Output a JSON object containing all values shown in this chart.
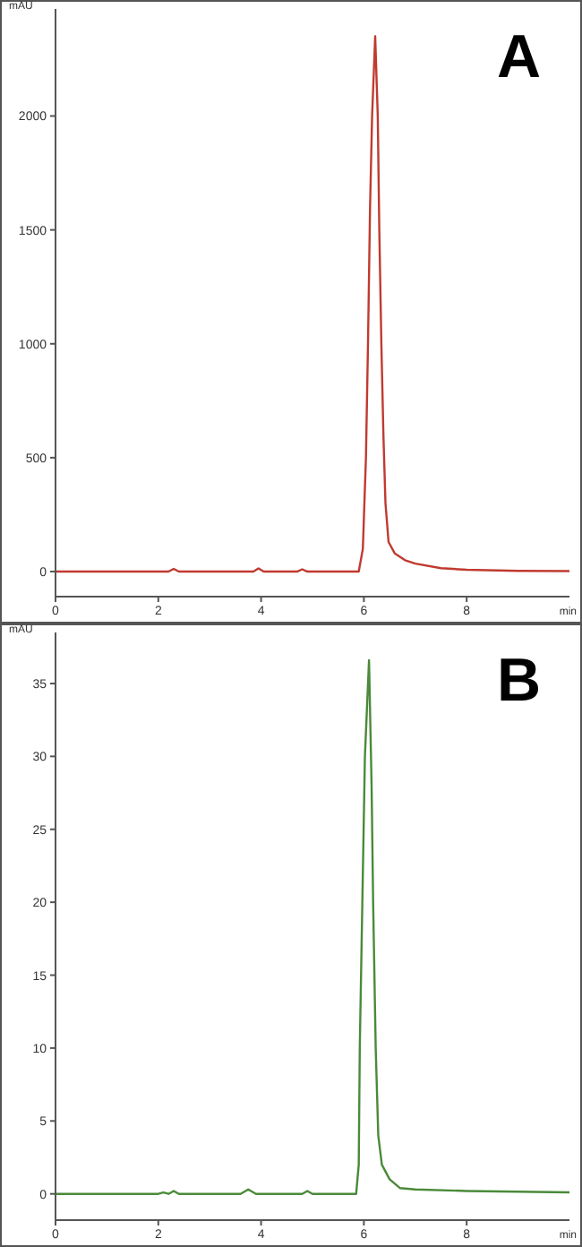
{
  "chart_data": [
    {
      "type": "line",
      "title": "A",
      "xlabel": "min",
      "ylabel": "mAU",
      "xlim": [
        0,
        10
      ],
      "xticks": [
        0,
        2,
        4,
        6,
        8
      ],
      "ylim": [
        -110,
        2470
      ],
      "yticks": [
        0,
        500,
        1000,
        1500,
        2000
      ],
      "series": [
        {
          "color": "#c03a30",
          "x": [
            0,
            2.2,
            2.3,
            2.4,
            3.85,
            3.95,
            4.05,
            4.7,
            4.8,
            4.9,
            5.9,
            5.98,
            6.04,
            6.08,
            6.12,
            6.16,
            6.22,
            6.27,
            6.3,
            6.34,
            6.38,
            6.42,
            6.48,
            6.6,
            6.8,
            7.0,
            7.5,
            8,
            9,
            10
          ],
          "values": [
            0,
            0,
            12,
            0,
            0,
            14,
            0,
            0,
            10,
            0,
            0,
            100,
            500,
            1000,
            1600,
            2000,
            2350,
            2000,
            1500,
            1000,
            600,
            300,
            130,
            80,
            50,
            35,
            15,
            8,
            3,
            2
          ]
        }
      ]
    },
    {
      "type": "line",
      "title": "B",
      "xlabel": "min",
      "ylabel": "mAU",
      "xlim": [
        0,
        10
      ],
      "xticks": [
        0,
        2,
        4,
        6,
        8
      ],
      "ylim": [
        -1.8,
        38.5
      ],
      "yticks": [
        0,
        5,
        10,
        15,
        20,
        25,
        30,
        35
      ],
      "series": [
        {
          "color": "#4a8a3a",
          "x": [
            0,
            2.0,
            2.1,
            2.2,
            2.3,
            2.4,
            3.6,
            3.75,
            3.9,
            4.8,
            4.9,
            5.0,
            5.85,
            5.9,
            5.92,
            5.97,
            6.02,
            6.1,
            6.15,
            6.18,
            6.23,
            6.28,
            6.35,
            6.5,
            6.7,
            7.0,
            8,
            10
          ],
          "values": [
            0,
            0,
            0.1,
            0,
            0.2,
            0,
            0,
            0.3,
            0,
            0,
            0.2,
            0,
            0,
            2,
            10,
            20,
            30,
            36.6,
            28,
            20,
            10,
            4,
            2,
            1,
            0.4,
            0.3,
            0.2,
            0.1
          ]
        }
      ]
    }
  ]
}
